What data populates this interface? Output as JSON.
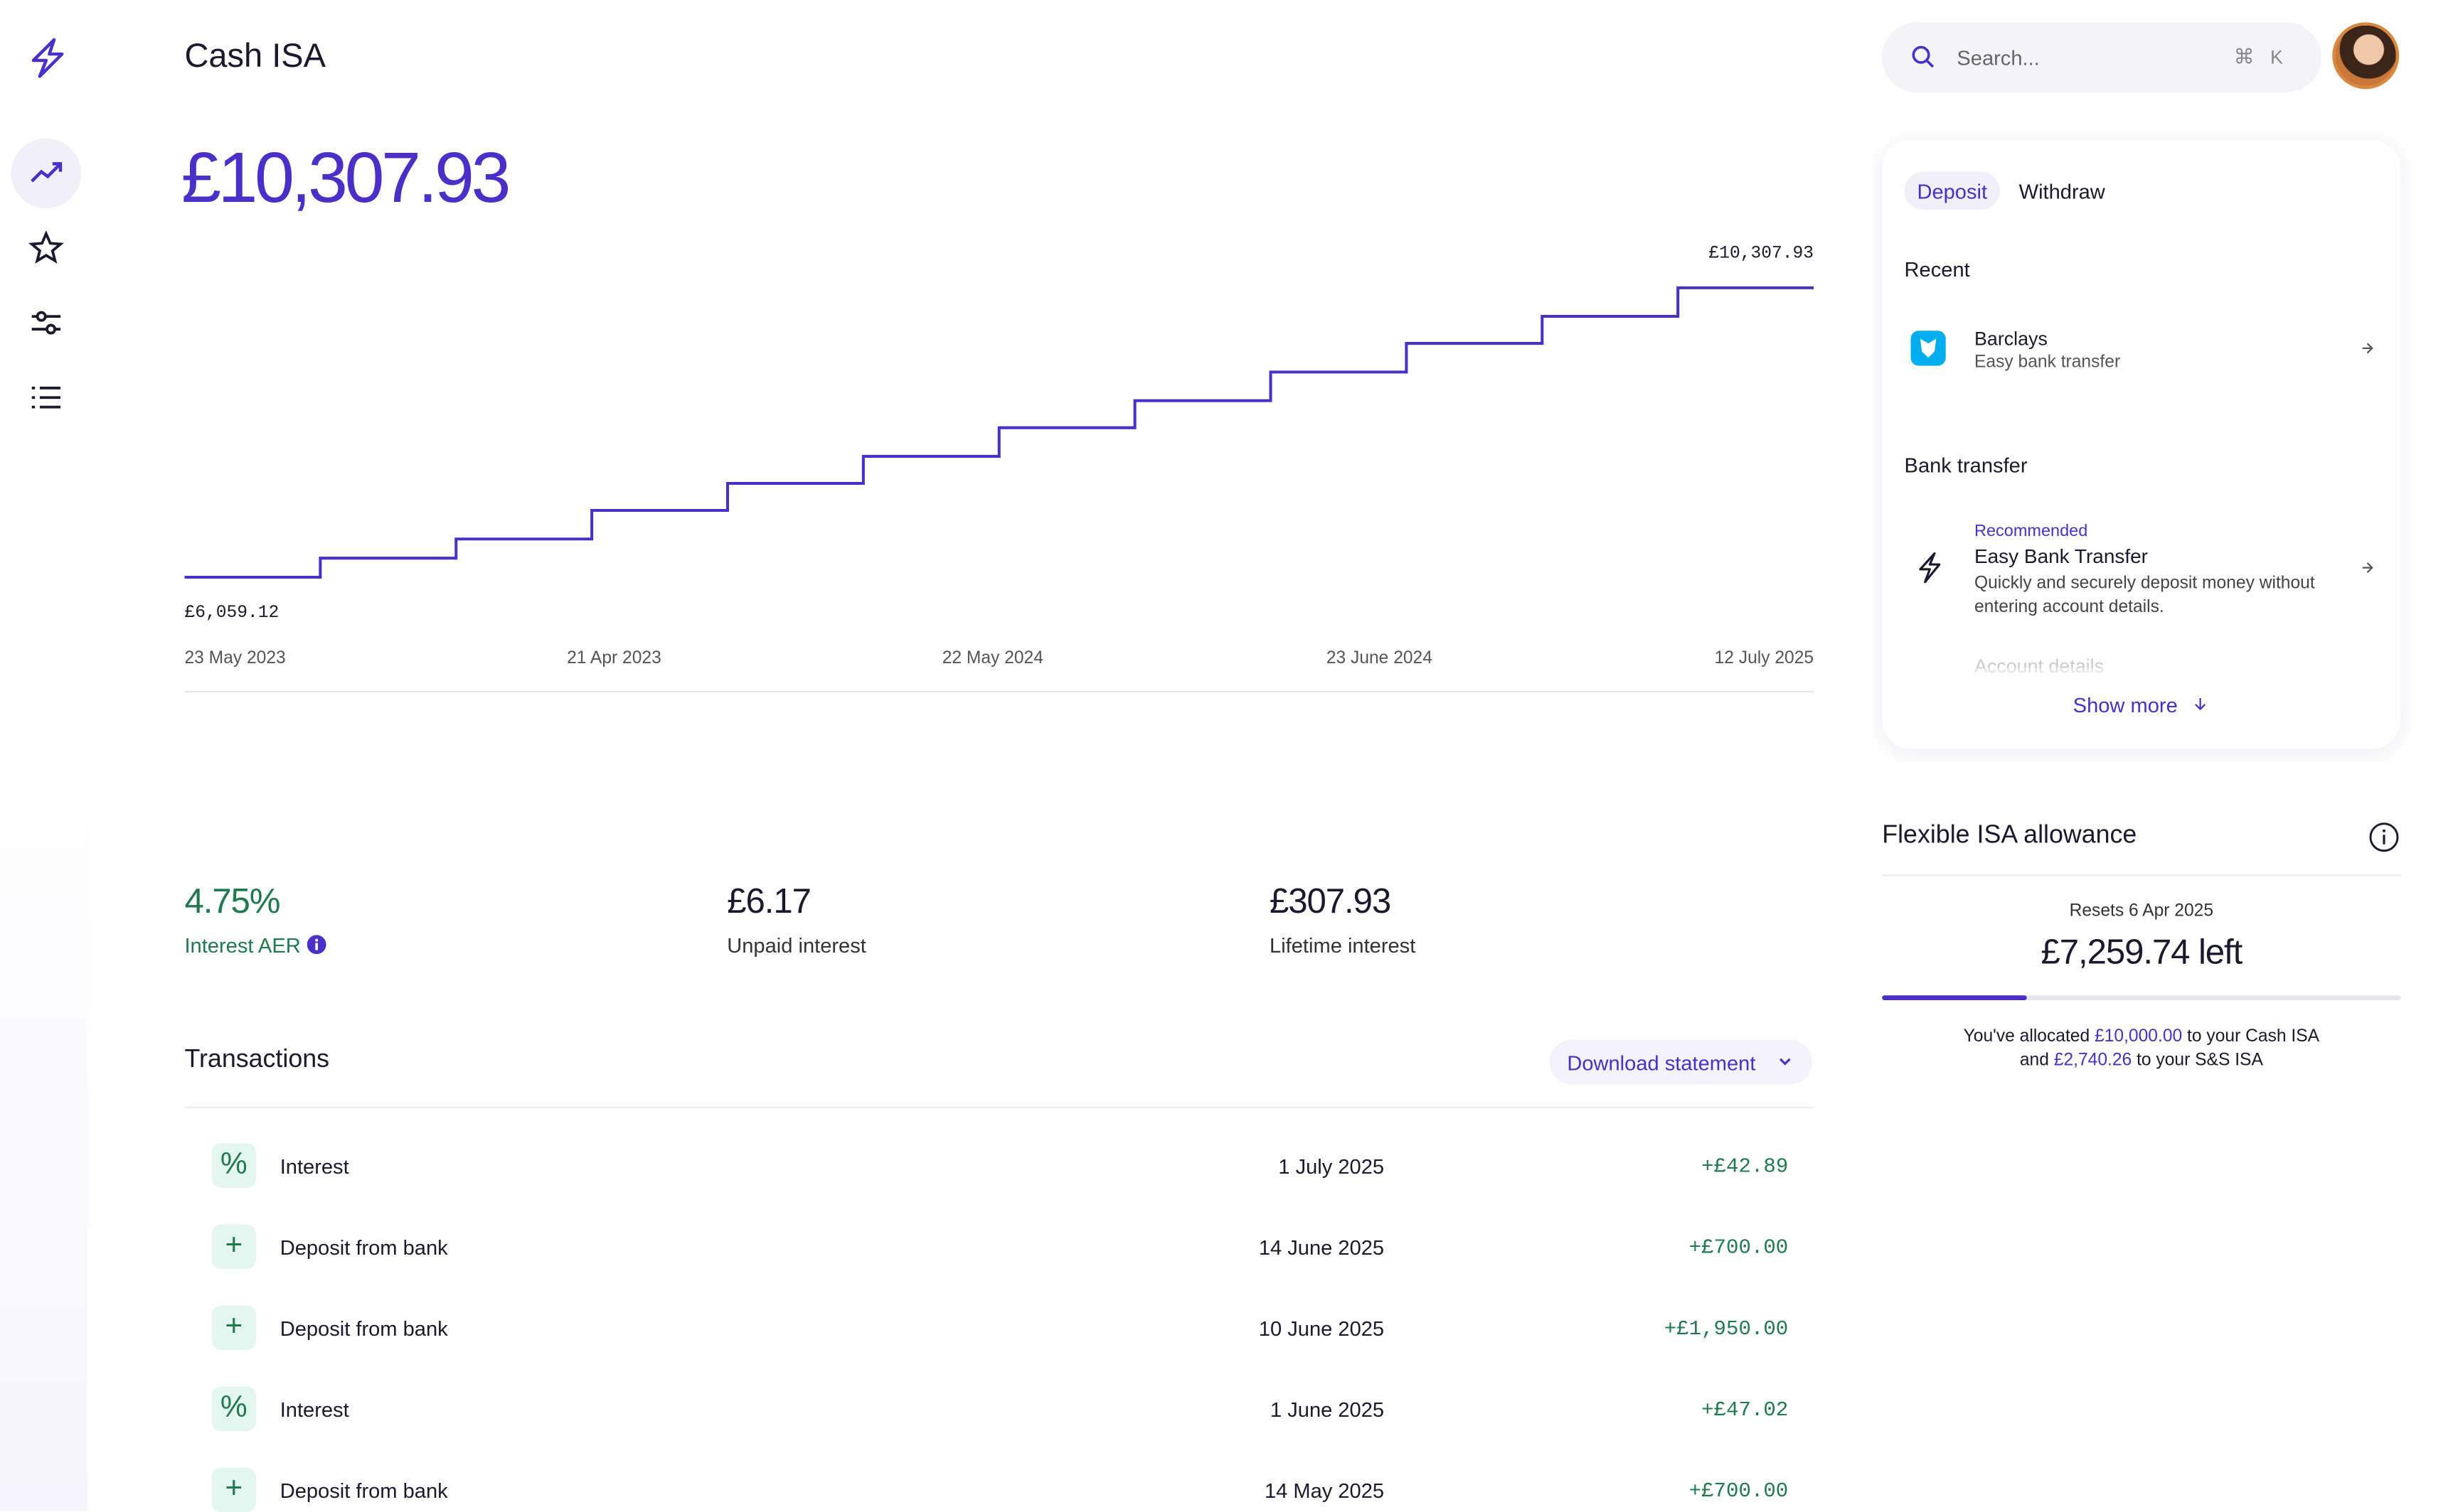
{
  "header": {
    "title": "Cash ISA"
  },
  "balance": "£10,307.93",
  "chart_data": {
    "type": "line",
    "color": "#4a2fc8",
    "values": [
      6059.12,
      6339,
      6620,
      7040,
      7437,
      7834,
      8254,
      8651,
      9071,
      9492,
      9889,
      10307.93
    ],
    "value_labels": [
      "£6,059.12",
      null,
      null,
      null,
      null,
      null,
      null,
      null,
      null,
      null,
      null,
      "£10,307.93"
    ],
    "x_labels": [
      "23 May 2023",
      "21 Apr 2023",
      "22 May 2024",
      "23 June 2024",
      "12 July 2025"
    ]
  },
  "stats": [
    {
      "value": "4.75%",
      "label": "Interest AER"
    },
    {
      "value": "£6.17",
      "label": "Unpaid interest"
    },
    {
      "value": "£307.93",
      "label": "Lifetime interest"
    }
  ],
  "transactions": {
    "title": "Transactions",
    "download": "Download statement",
    "rows": [
      {
        "icon": "%",
        "name": "Interest",
        "date": "1 July 2025",
        "amount": "+£42.89"
      },
      {
        "icon": "+",
        "name": "Deposit from bank",
        "date": "14 June 2025",
        "amount": "+£700.00"
      },
      {
        "icon": "+",
        "name": "Deposit from bank",
        "date": "10 June 2025",
        "amount": "+£1,950.00"
      },
      {
        "icon": "%",
        "name": "Interest",
        "date": "1 June 2025",
        "amount": "+£47.02"
      },
      {
        "icon": "+",
        "name": "Deposit from bank",
        "date": "14 May 2025",
        "amount": "+£700.00"
      }
    ]
  },
  "search": {
    "placeholder": "Search...",
    "keys": [
      "⌘",
      "K"
    ]
  },
  "panel": {
    "tabs": [
      "Deposit",
      "Withdraw"
    ],
    "recent": "Recent",
    "recent_item": {
      "title": "Barclays",
      "subtitle": "Easy bank transfer"
    },
    "bank_transfer": "Bank transfer",
    "recommended": {
      "tag": "Recommended",
      "title": "Easy Bank Transfer",
      "desc": "Quickly and securely deposit money without entering account details."
    },
    "faded": "Account details",
    "show_more": "Show more"
  },
  "allowance": {
    "title": "Flexible ISA allowance",
    "resets": "Resets 6 Apr 2025",
    "left": "£7,259.74 left",
    "progress": 28,
    "note": [
      "You've allocated ",
      "£10,000.00",
      " to your Cash ISA",
      "and ",
      "£2,740.26",
      " to your S&S ISA"
    ]
  }
}
